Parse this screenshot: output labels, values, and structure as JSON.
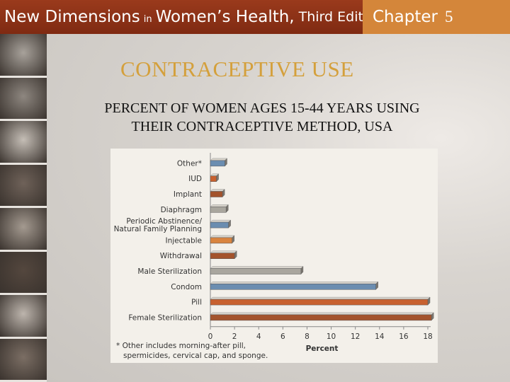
{
  "header": {
    "book_title_part1": "New Dimensions",
    "book_title_part2": "in",
    "book_title_part3": "Women’s Health,",
    "book_title_part4": "Third Edition",
    "chapter_label": "Chapter",
    "chapter_number": "5"
  },
  "slide": {
    "title": "CONTRACEPTIVE USE",
    "subtitle_line1": "PERCENT OF WOMEN AGES 15-44 YEARS USING",
    "subtitle_line2": "THEIR CONTRACEPTIVE METHOD, USA"
  },
  "chart_data": {
    "type": "bar",
    "orientation": "horizontal",
    "categories": [
      "Other*",
      "IUD",
      "Implant",
      "Diaphragm",
      "Periodic Abstinence/\nNatural Family Planning",
      "Injectable",
      "Withdrawal",
      "Male Sterilization",
      "Condom",
      "Pill",
      "Female Sterilization"
    ],
    "values": [
      1.2,
      0.5,
      1.0,
      1.3,
      1.5,
      1.8,
      2.0,
      7.5,
      13.7,
      18.0,
      18.3
    ],
    "bar_colors": [
      "#6b8db0",
      "#c8612f",
      "#a3532c",
      "#a9a69e",
      "#6b8db0",
      "#d9843f",
      "#a3532c",
      "#a9a69e",
      "#6b8db0",
      "#c8612f",
      "#a3532c"
    ],
    "xlabel": "Percent",
    "xlim": [
      0,
      18
    ],
    "xticks": [
      "0",
      "2",
      "4",
      "6",
      "8",
      "10",
      "12",
      "14",
      "16",
      "18"
    ],
    "footnote_line1": "* Other includes morning-after pill,",
    "footnote_line2": "spermicides, cervical cap, and sponge."
  },
  "photo_strip": {
    "tones": [
      "#a8a29b",
      "#8e8780",
      "#c5beb6",
      "#6f6259",
      "#a49a90",
      "#54473e",
      "#bdb5ad",
      "#7b6e64"
    ]
  }
}
